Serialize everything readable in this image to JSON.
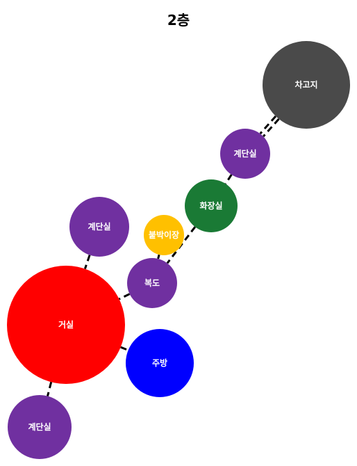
{
  "title": "2층",
  "colors": {
    "purple": "#7030a0",
    "red": "#ff0000",
    "blue": "#0000ff",
    "green": "#1a7a35",
    "yellow": "#ffc000",
    "gray": "#4a4a4a"
  },
  "rooms": [
    {
      "id": "garage",
      "label": "차고지",
      "color": "#4a4a4a"
    },
    {
      "id": "stairs-top",
      "label": "계단실",
      "color": "#7030a0"
    },
    {
      "id": "bathroom",
      "label": "화장실",
      "color": "#1a7a35"
    },
    {
      "id": "closet",
      "label": "붙박이장",
      "color": "#ffc000"
    },
    {
      "id": "stairs-mid",
      "label": "계단실",
      "color": "#7030a0"
    },
    {
      "id": "hallway",
      "label": "복도",
      "color": "#7030a0"
    },
    {
      "id": "living",
      "label": "거실",
      "color": "#ff0000"
    },
    {
      "id": "kitchen",
      "label": "주방",
      "color": "#0000ff"
    },
    {
      "id": "stairs-bottom",
      "label": "계단실",
      "color": "#7030a0"
    }
  ],
  "connections": [
    {
      "from": "garage",
      "to": "stairs-top",
      "double": true
    },
    {
      "from": "stairs-top",
      "to": "bathroom",
      "double": false
    },
    {
      "from": "bathroom",
      "to": "hallway",
      "double": false
    },
    {
      "from": "closet",
      "to": "hallway",
      "double": false
    },
    {
      "from": "hallway",
      "to": "living",
      "double": false
    },
    {
      "from": "stairs-mid",
      "to": "living",
      "double": false
    },
    {
      "from": "living",
      "to": "kitchen",
      "double": false
    },
    {
      "from": "living",
      "to": "stairs-bottom",
      "double": false
    }
  ]
}
